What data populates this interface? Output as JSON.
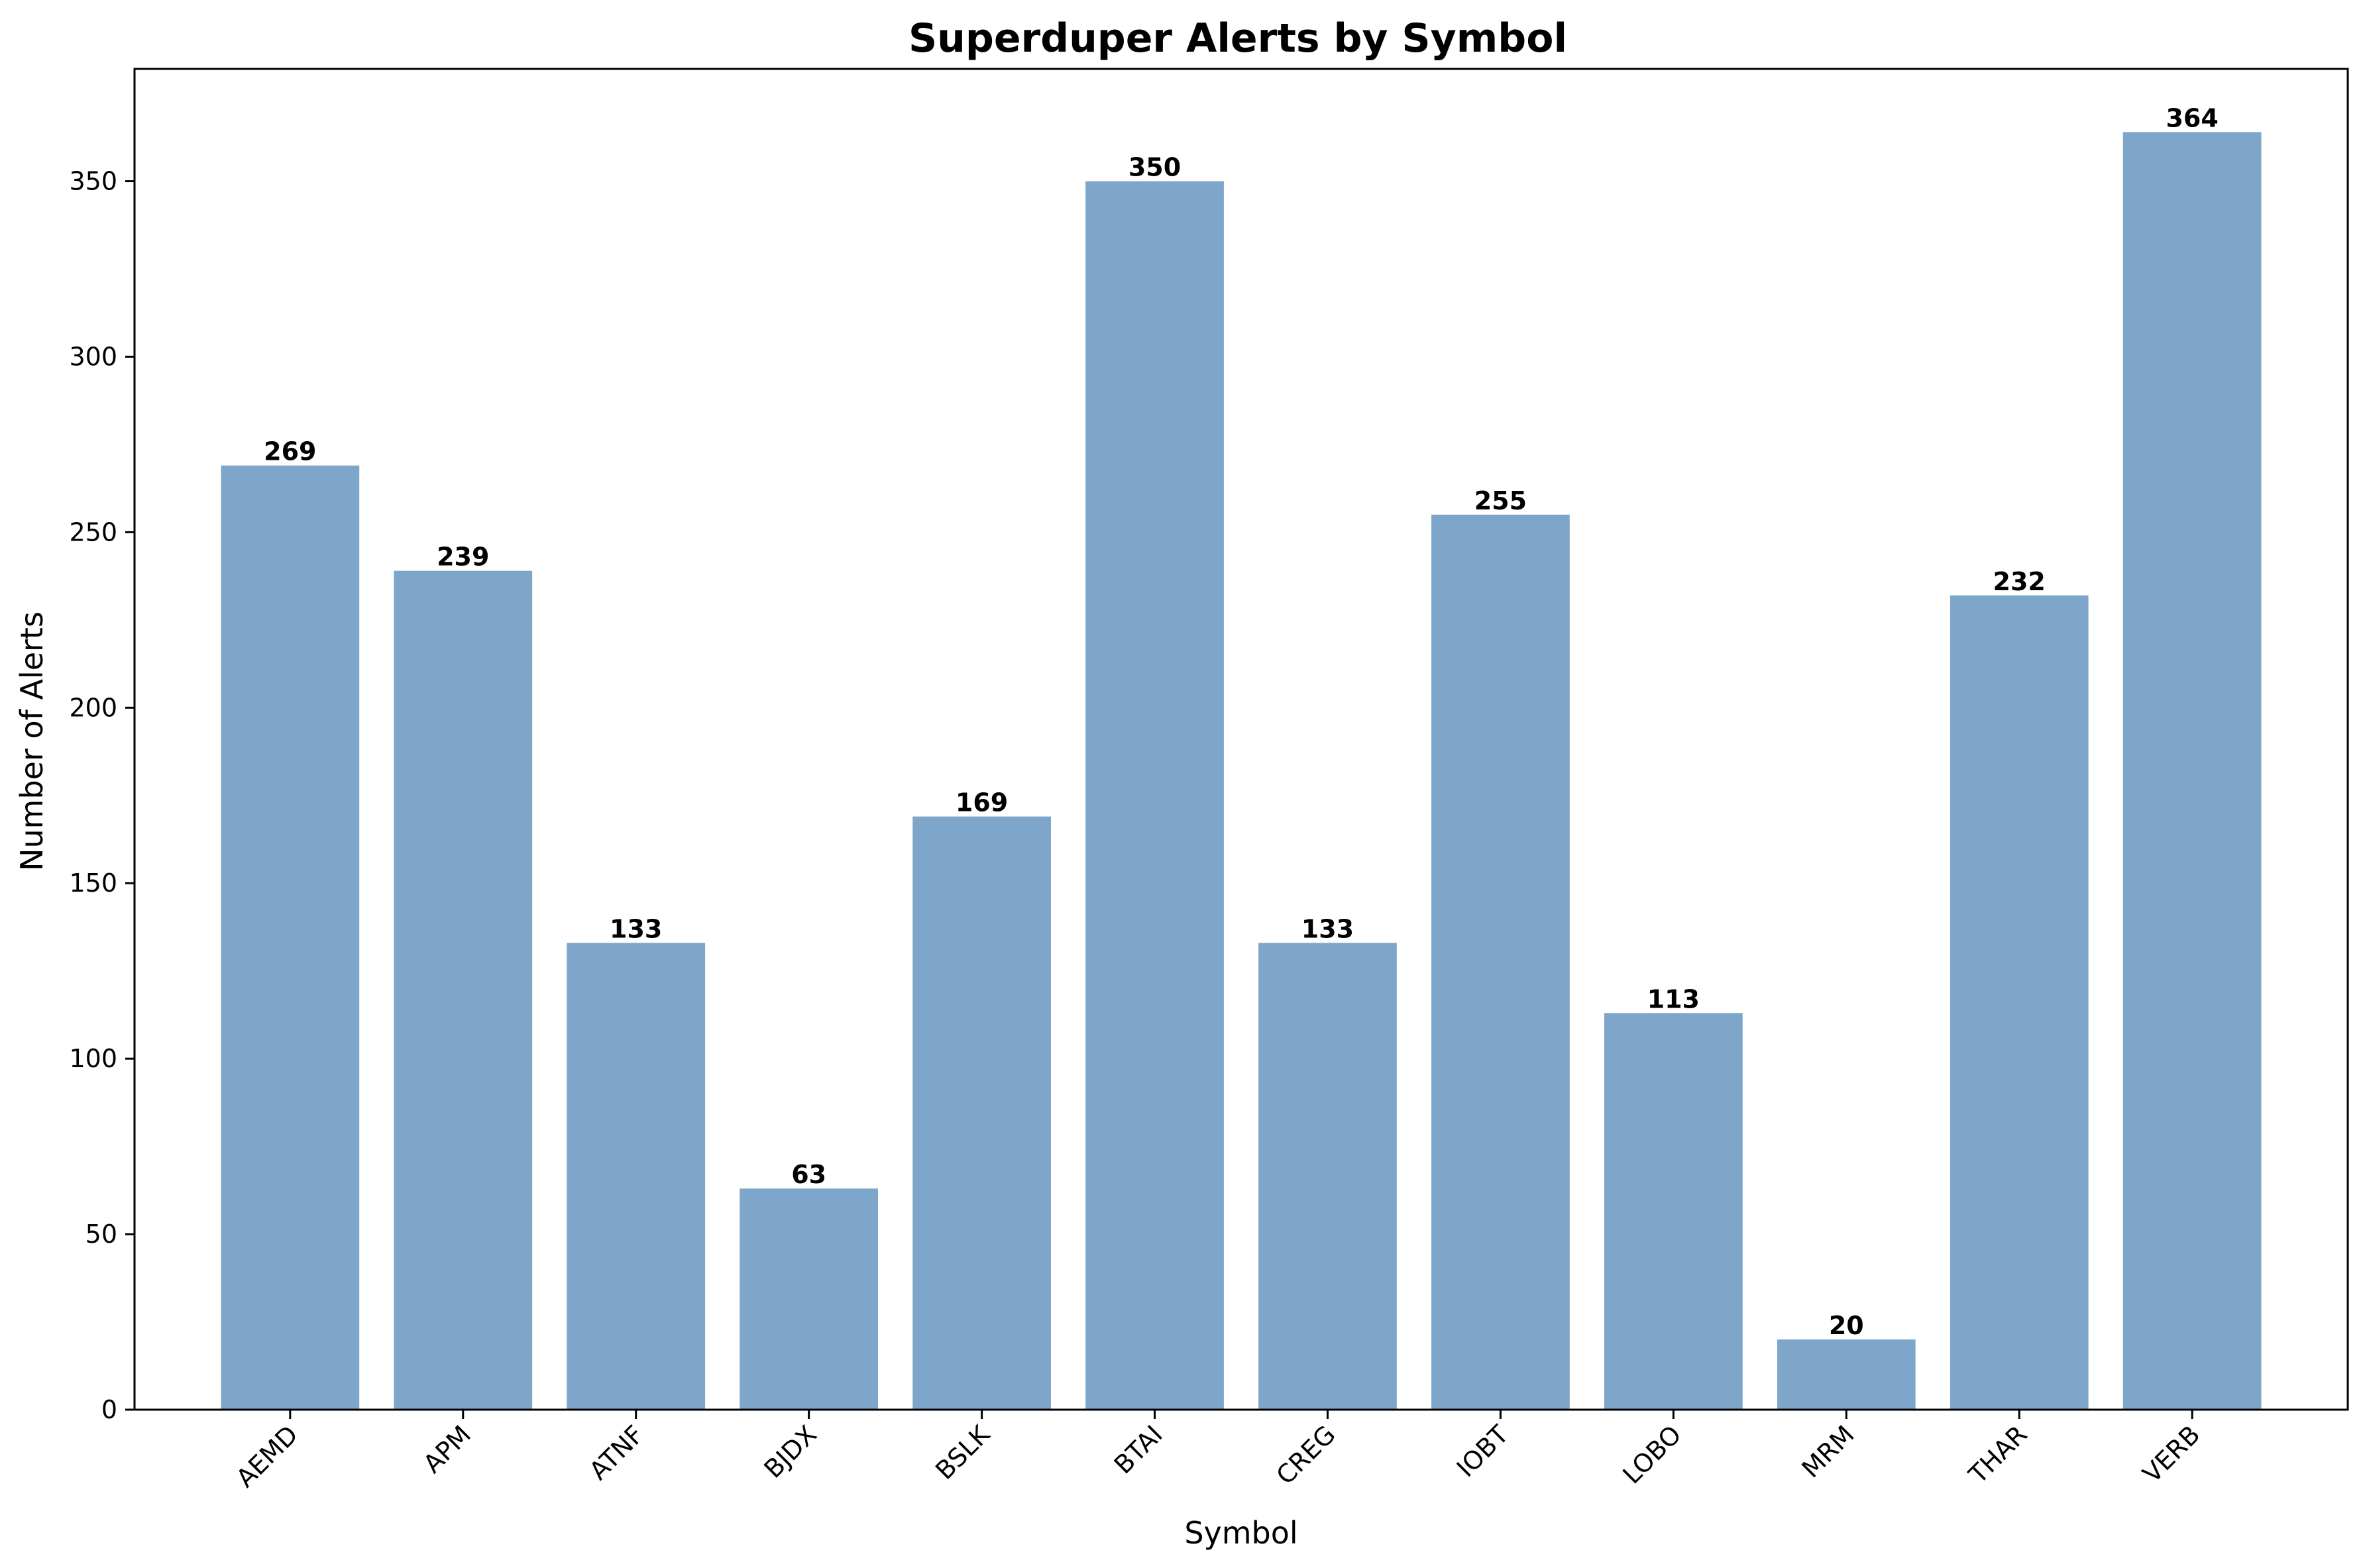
{
  "chart_data": {
    "type": "bar",
    "title": "Superduper Alerts by Symbol",
    "xlabel": "Symbol",
    "ylabel": "Number of Alerts",
    "categories": [
      "AEMD",
      "APM",
      "ATNF",
      "BJDX",
      "BSLK",
      "BTAI",
      "CREG",
      "IOBT",
      "LOBO",
      "MRM",
      "THAR",
      "VERB"
    ],
    "values": [
      269,
      239,
      133,
      63,
      169,
      350,
      133,
      255,
      113,
      20,
      232,
      364
    ],
    "ylim": [
      0,
      382
    ],
    "yticks": [
      0,
      50,
      100,
      150,
      200,
      250,
      300,
      350
    ],
    "grid": false,
    "legend": "none",
    "bar_color": "#7ea6ca",
    "xtick_rotation": 45
  }
}
